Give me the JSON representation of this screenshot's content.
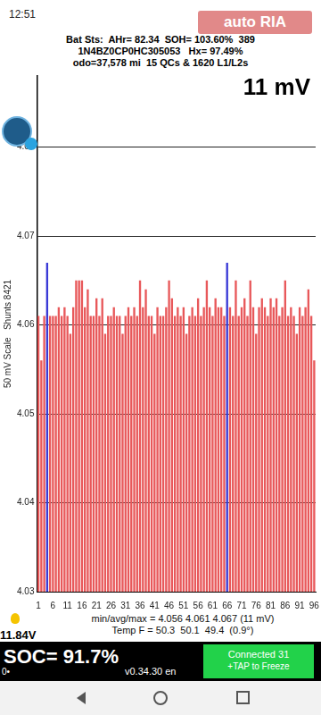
{
  "status_bar": {
    "time": "12:51"
  },
  "watermark": "auto RIA",
  "header": {
    "lines": [
      "Bat Sts:  AHr= 82.34  SOH= 103.60%  389",
      "1N4BZ0CP0HC305053   Hx= 97.49%",
      "odo=37,578 mi  15 QCs & 1620 L1/L2s"
    ],
    "spread": "11 mV"
  },
  "chart_data": {
    "type": "bar",
    "y_label": "50 mV Scale   Shunts 8421",
    "categories": [
      "1",
      null,
      null,
      null,
      null,
      "6",
      null,
      null,
      null,
      null,
      "11",
      null,
      null,
      null,
      null,
      "16",
      null,
      null,
      null,
      null,
      "21",
      null,
      null,
      null,
      null,
      "26",
      null,
      null,
      null,
      null,
      "31",
      null,
      null,
      null,
      null,
      "36",
      null,
      null,
      null,
      null,
      "41",
      null,
      null,
      null,
      null,
      "46",
      null,
      null,
      null,
      null,
      "51",
      null,
      null,
      null,
      null,
      "56",
      null,
      null,
      null,
      null,
      "61",
      null,
      null,
      null,
      null,
      "66",
      null,
      null,
      null,
      null,
      "71",
      null,
      null,
      null,
      null,
      "76",
      null,
      null,
      null,
      null,
      "81",
      null,
      null,
      null,
      null,
      "86",
      null,
      null,
      null,
      null,
      "91",
      null,
      null,
      null,
      null,
      "96"
    ],
    "values": [
      4.061,
      4.056,
      4.061,
      4.067,
      4.061,
      4.061,
      4.061,
      4.062,
      4.061,
      4.062,
      4.061,
      4.059,
      4.062,
      4.065,
      4.065,
      4.065,
      4.062,
      4.064,
      4.061,
      4.061,
      4.063,
      4.061,
      4.063,
      4.059,
      4.061,
      4.061,
      4.062,
      4.061,
      4.061,
      4.059,
      4.061,
      4.062,
      4.061,
      4.062,
      4.061,
      4.065,
      4.062,
      4.064,
      4.061,
      4.061,
      4.059,
      4.062,
      4.061,
      4.061,
      4.062,
      4.065,
      4.063,
      4.061,
      4.062,
      4.061,
      4.062,
      4.059,
      4.061,
      4.062,
      4.061,
      4.063,
      4.061,
      4.062,
      4.065,
      4.062,
      4.061,
      4.063,
      4.062,
      4.062,
      4.061,
      4.067,
      4.062,
      4.061,
      4.065,
      4.061,
      4.062,
      4.063,
      4.061,
      4.065,
      4.062,
      4.059,
      4.062,
      4.063,
      4.062,
      4.061,
      4.063,
      4.062,
      4.063,
      4.061,
      4.062,
      4.065,
      4.061,
      4.062,
      4.061,
      4.059,
      4.062,
      4.061,
      4.062,
      4.064,
      4.061,
      4.056
    ],
    "colors": [
      "#e8585a",
      "#e8585a",
      "#e8585a",
      "#3a3ad6",
      "#e8585a",
      "#e8585a",
      "#e8585a",
      "#e8585a",
      "#e8585a",
      "#e8585a",
      "#e8585a",
      "#e8585a",
      "#e8585a",
      "#e8585a",
      "#e8585a",
      "#e8585a",
      "#e8585a",
      "#e8585a",
      "#e8585a",
      "#e8585a",
      "#e8585a",
      "#e8585a",
      "#e8585a",
      "#e8585a",
      "#e8585a",
      "#e8585a",
      "#e8585a",
      "#e8585a",
      "#e8585a",
      "#e8585a",
      "#e8585a",
      "#e8585a",
      "#e8585a",
      "#e8585a",
      "#e8585a",
      "#e8585a",
      "#e8585a",
      "#e8585a",
      "#e8585a",
      "#e8585a",
      "#e8585a",
      "#e8585a",
      "#e8585a",
      "#e8585a",
      "#e8585a",
      "#e8585a",
      "#e8585a",
      "#e8585a",
      "#e8585a",
      "#e8585a",
      "#e8585a",
      "#e8585a",
      "#e8585a",
      "#e8585a",
      "#e8585a",
      "#e8585a",
      "#e8585a",
      "#e8585a",
      "#e8585a",
      "#e8585a",
      "#e8585a",
      "#e8585a",
      "#e8585a",
      "#e8585a",
      "#e8585a",
      "#3a3ad6",
      "#e8585a",
      "#e8585a",
      "#e8585a",
      "#e8585a",
      "#e8585a",
      "#e8585a",
      "#e8585a",
      "#e8585a",
      "#e8585a",
      "#e8585a",
      "#e8585a",
      "#e8585a",
      "#e8585a",
      "#e8585a",
      "#e8585a",
      "#e8585a",
      "#e8585a",
      "#e8585a",
      "#e8585a",
      "#e8585a",
      "#e8585a",
      "#e8585a",
      "#e8585a",
      "#e8585a",
      "#e8585a",
      "#e8585a",
      "#e8585a",
      "#e8585a",
      "#e8585a",
      "#e8585a"
    ],
    "ylim": [
      4.03,
      4.088
    ],
    "yticks": [
      4.03,
      4.04,
      4.05,
      4.06,
      4.07,
      4.08
    ],
    "grid": true
  },
  "stats": {
    "lines": [
      "min/avg/max = 4.056 4.061 4.067 (11 mV)",
      "Temp F = 50.3  50.1  49.4  (0.9°)"
    ]
  },
  "footer": {
    "voltage": "11.84V",
    "soc": "SOC= 91.7%",
    "indicator": "0•",
    "version": "v0.34.30 en",
    "button": [
      "Connected 31",
      "+TAP to Freeze"
    ]
  }
}
